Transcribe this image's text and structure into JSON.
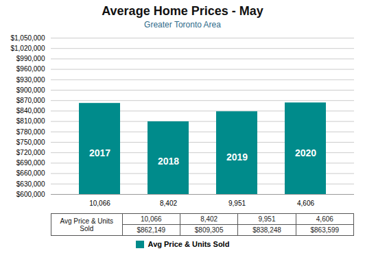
{
  "chart_data": {
    "type": "bar",
    "title": "Average Home Prices - May",
    "subtitle": "Greater Toronto Area",
    "categories": [
      "10,066",
      "8,402",
      "9,951",
      "4,606"
    ],
    "series": [
      {
        "name": "Avg Price & Units Sold",
        "color": "#008B8B",
        "values": [
          862149,
          809305,
          838248,
          863599
        ]
      }
    ],
    "bar_labels": [
      "2017",
      "2018",
      "2019",
      "2020"
    ],
    "table": {
      "row_label": "Avg Price & Units Sold",
      "rows": [
        [
          "10,066",
          "8,402",
          "9,951",
          "4,606"
        ],
        [
          "$862,149",
          "$809,305",
          "$838,248",
          "$863,599"
        ]
      ]
    },
    "ylim": [
      600000,
      1050000
    ],
    "yticks": [
      {
        "value": 600000,
        "label": "$600,000"
      },
      {
        "value": 630000,
        "label": "$630,000"
      },
      {
        "value": 660000,
        "label": "$660,000"
      },
      {
        "value": 690000,
        "label": "$690,000"
      },
      {
        "value": 720000,
        "label": "$720,000"
      },
      {
        "value": 750000,
        "label": "$750,000"
      },
      {
        "value": 780000,
        "label": "$780,000"
      },
      {
        "value": 810000,
        "label": "$810,000"
      },
      {
        "value": 840000,
        "label": "$840,000"
      },
      {
        "value": 870000,
        "label": "$870,000"
      },
      {
        "value": 900000,
        "label": "$900,000"
      },
      {
        "value": 930000,
        "label": "$930,000"
      },
      {
        "value": 960000,
        "label": "$960,000"
      },
      {
        "value": 990000,
        "label": "$990,000"
      },
      {
        "value": 1020000,
        "label": "$1,020,000"
      },
      {
        "value": 1050000,
        "label": "$1,050,000"
      }
    ],
    "grid": true,
    "legend": "bottom"
  }
}
